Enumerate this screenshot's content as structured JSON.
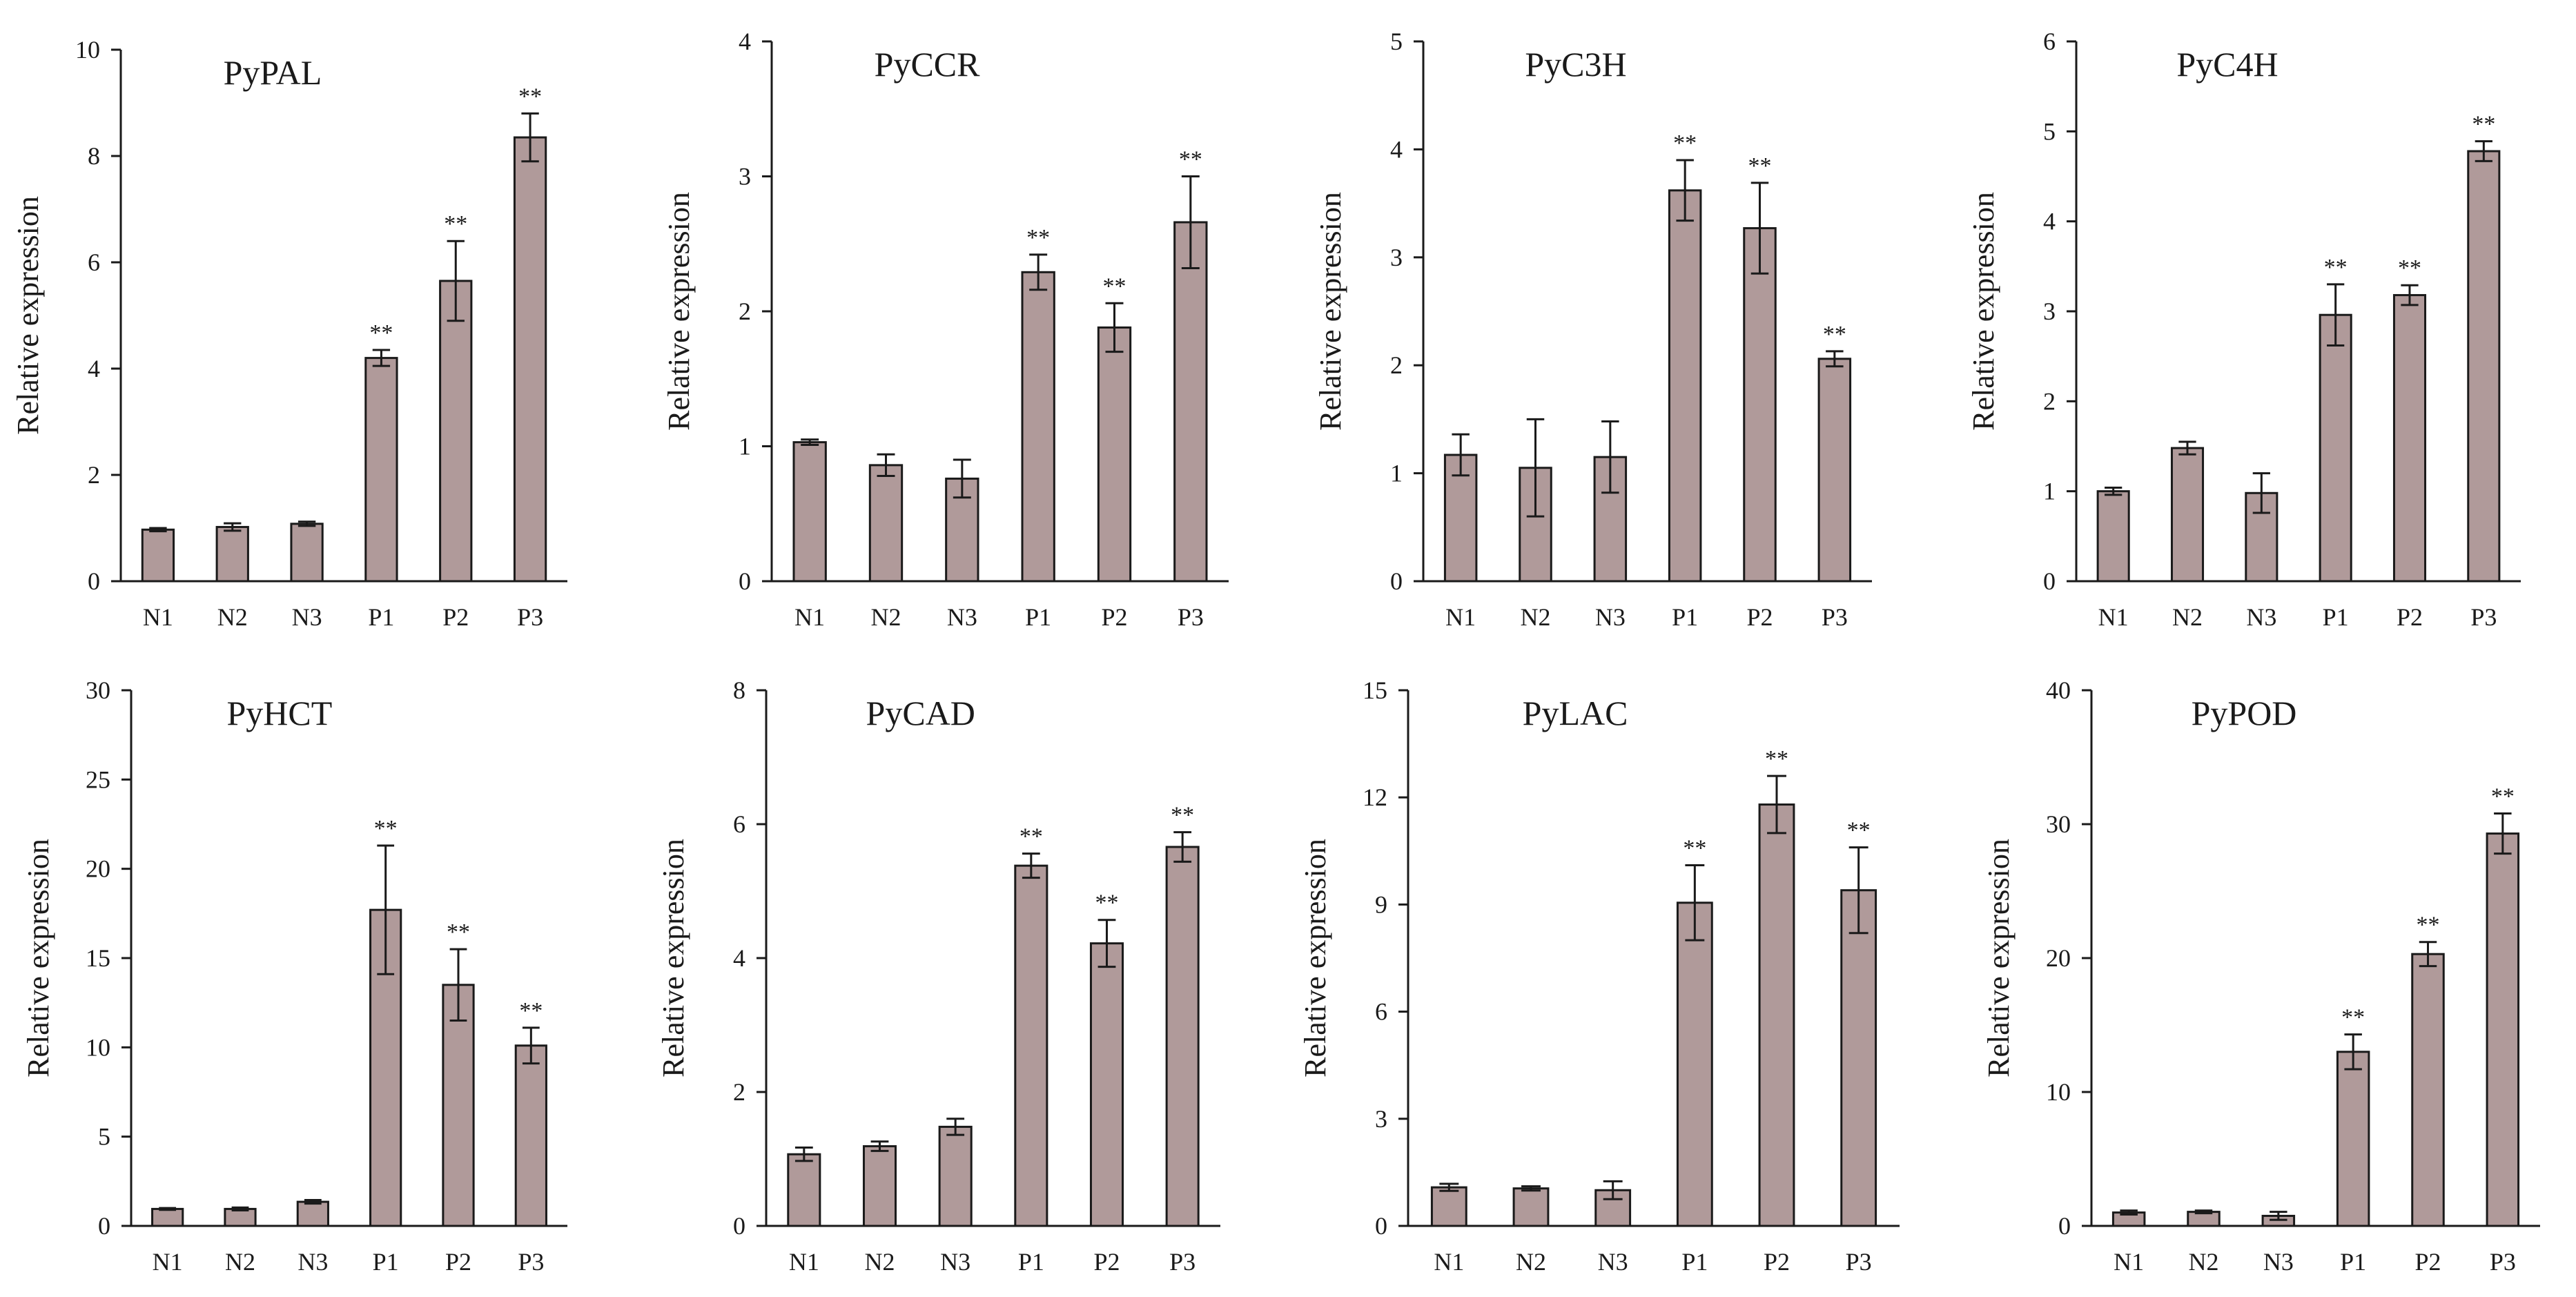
{
  "style": {
    "bar_fill": "#b09a9a",
    "ink": "#1a1a1a",
    "background": "#ffffff"
  },
  "chart_data": [
    {
      "type": "bar",
      "title": "PyPAL",
      "ylabel": "Relative expression",
      "xlabel": "",
      "categories": [
        "N1",
        "N2",
        "N3",
        "P1",
        "P2",
        "P3"
      ],
      "values": [
        0.97,
        1.02,
        1.08,
        4.2,
        5.65,
        8.35
      ],
      "errors": [
        0.03,
        0.07,
        0.04,
        0.15,
        0.75,
        0.45
      ],
      "significance": [
        "",
        "",
        "",
        "**",
        "**",
        "**"
      ],
      "ylim": [
        0,
        10
      ],
      "yticks": [
        "0",
        "2",
        "4",
        "6",
        "8",
        "10"
      ]
    },
    {
      "type": "bar",
      "title": "PyCCR",
      "ylabel": "Relative expression",
      "xlabel": "",
      "categories": [
        "N1",
        "N2",
        "N3",
        "P1",
        "P2",
        "P3"
      ],
      "values": [
        1.03,
        0.86,
        0.76,
        2.29,
        1.88,
        2.66
      ],
      "errors": [
        0.02,
        0.08,
        0.14,
        0.13,
        0.18,
        0.34
      ],
      "significance": [
        "",
        "",
        "",
        "**",
        "**",
        "**"
      ],
      "ylim": [
        0,
        4
      ],
      "yticks": [
        "0",
        "1",
        "2",
        "3",
        "4"
      ]
    },
    {
      "type": "bar",
      "title": "PyC3H",
      "ylabel": "Relative expression",
      "xlabel": "",
      "categories": [
        "N1",
        "N2",
        "N3",
        "P1",
        "P2",
        "P3"
      ],
      "values": [
        1.17,
        1.05,
        1.15,
        3.62,
        3.27,
        2.06
      ],
      "errors": [
        0.19,
        0.45,
        0.33,
        0.28,
        0.42,
        0.07
      ],
      "significance": [
        "",
        "",
        "",
        "**",
        "**",
        "**"
      ],
      "ylim": [
        0,
        5
      ],
      "yticks": [
        "0",
        "1",
        "2",
        "3",
        "4",
        "5"
      ]
    },
    {
      "type": "bar",
      "title": "PyC4H",
      "ylabel": "Relative expression",
      "xlabel": "",
      "categories": [
        "N1",
        "N2",
        "N3",
        "P1",
        "P2",
        "P3"
      ],
      "values": [
        1.0,
        1.48,
        0.98,
        2.96,
        3.18,
        4.78
      ],
      "errors": [
        0.04,
        0.07,
        0.22,
        0.34,
        0.11,
        0.11
      ],
      "significance": [
        "",
        "",
        "",
        "**",
        "**",
        "**"
      ],
      "ylim": [
        0,
        6
      ],
      "yticks": [
        "0",
        "1",
        "2",
        "3",
        "4",
        "5",
        "6"
      ]
    },
    {
      "type": "bar",
      "title": "PyHCT",
      "ylabel": "Relative expression",
      "xlabel": "",
      "categories": [
        "N1",
        "N2",
        "N3",
        "P1",
        "P2",
        "P3"
      ],
      "values": [
        0.95,
        0.95,
        1.35,
        17.7,
        13.5,
        10.1
      ],
      "errors": [
        0.05,
        0.08,
        0.1,
        3.6,
        2.0,
        1.0
      ],
      "significance": [
        "",
        "",
        "",
        "**",
        "**",
        "**"
      ],
      "ylim": [
        0,
        30
      ],
      "yticks": [
        "0",
        "5",
        "10",
        "15",
        "20",
        "25",
        "30"
      ]
    },
    {
      "type": "bar",
      "title": "PyCAD",
      "ylabel": "Relative expression",
      "xlabel": "",
      "categories": [
        "N1",
        "N2",
        "N3",
        "P1",
        "P2",
        "P3"
      ],
      "values": [
        1.07,
        1.19,
        1.48,
        5.38,
        4.22,
        5.66
      ],
      "errors": [
        0.1,
        0.07,
        0.12,
        0.18,
        0.35,
        0.22
      ],
      "significance": [
        "",
        "",
        "",
        "**",
        "**",
        "**"
      ],
      "ylim": [
        0,
        8
      ],
      "yticks": [
        "0",
        "2",
        "4",
        "6",
        "8"
      ]
    },
    {
      "type": "bar",
      "title": "PyLAC",
      "ylabel": "Relative expression",
      "xlabel": "",
      "categories": [
        "N1",
        "N2",
        "N3",
        "P1",
        "P2",
        "P3"
      ],
      "values": [
        1.08,
        1.05,
        1.0,
        9.05,
        11.8,
        9.4
      ],
      "errors": [
        0.1,
        0.06,
        0.25,
        1.05,
        0.8,
        1.2
      ],
      "significance": [
        "",
        "",
        "",
        "**",
        "**",
        "**"
      ],
      "ylim": [
        0,
        15
      ],
      "yticks": [
        "0",
        "3",
        "6",
        "9",
        "12",
        "15"
      ]
    },
    {
      "type": "bar",
      "title": "PyPOD",
      "ylabel": "Relative expression",
      "xlabel": "",
      "categories": [
        "N1",
        "N2",
        "N3",
        "P1",
        "P2",
        "P3"
      ],
      "values": [
        1.0,
        1.05,
        0.75,
        13.0,
        20.3,
        29.3
      ],
      "errors": [
        0.15,
        0.1,
        0.3,
        1.3,
        0.9,
        1.5
      ],
      "significance": [
        "",
        "",
        "",
        "**",
        "**",
        "**"
      ],
      "ylim": [
        0,
        40
      ],
      "yticks": [
        "0",
        "10",
        "20",
        "30",
        "40"
      ]
    }
  ]
}
